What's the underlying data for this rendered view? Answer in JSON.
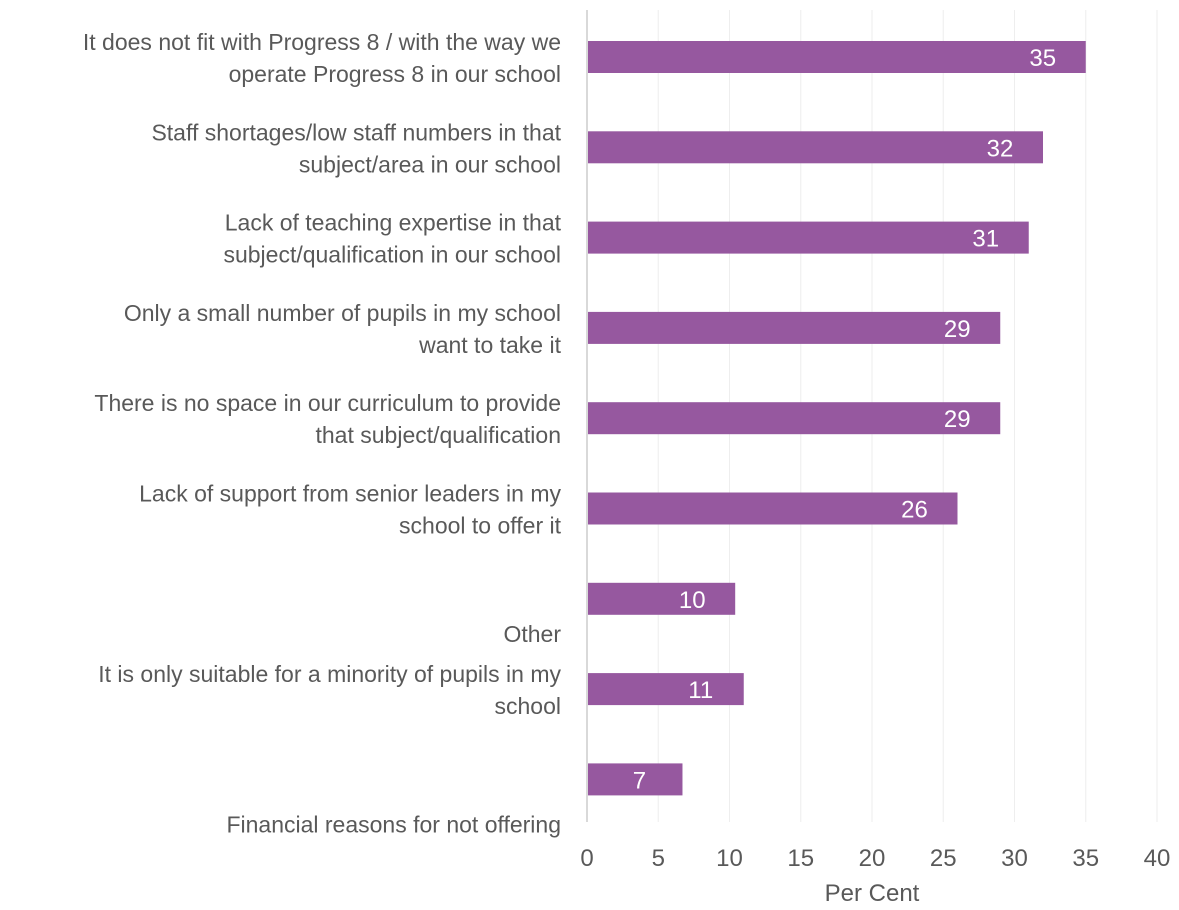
{
  "chart_data": {
    "type": "bar",
    "orientation": "horizontal",
    "title": "",
    "xlabel": "Per Cent",
    "ylabel": "",
    "xlim": [
      0,
      40
    ],
    "x_ticks": [
      "0",
      "5",
      "10",
      "15",
      "20",
      "25",
      "30",
      "35",
      "40"
    ],
    "grid": "vertical",
    "bar_color": "#96589f",
    "categories": [
      [
        "It does not fit with Progress 8 / with the way we",
        "operate Progress 8 in our school"
      ],
      [
        "Staff shortages/low staff numbers in that",
        "subject/area in our school"
      ],
      [
        "Lack of teaching expertise in that",
        "subject/qualification in our school"
      ],
      [
        "Only a small number of pupils in my school",
        "want to take it"
      ],
      [
        "There is no space in our curriculum to provide",
        "that subject/qualification"
      ],
      [
        "Lack of support from senior leaders in my",
        "school to offer it"
      ],
      [
        "Other"
      ],
      [
        "It is only suitable for a minority of pupils in my",
        "school"
      ],
      [
        "Financial reasons for not offering"
      ]
    ],
    "values": [
      35,
      32,
      31,
      29,
      29,
      26,
      10.4,
      11,
      6.7
    ],
    "data_labels": [
      "35",
      "32",
      "31",
      "29",
      "29",
      "26",
      "10",
      "11",
      "7"
    ]
  }
}
